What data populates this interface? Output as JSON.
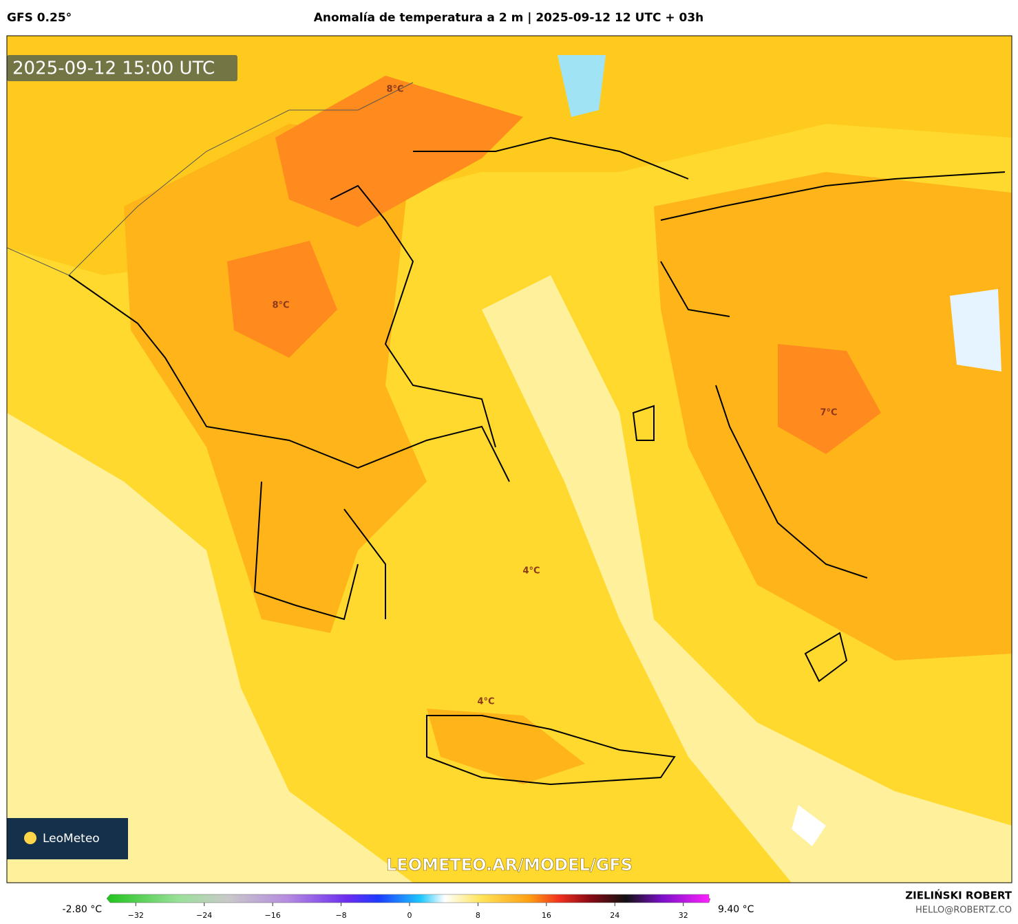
{
  "header": {
    "model": "GFS 0.25°",
    "title": "Anomalía de temperatura a 2 m | 2025-09-12 12 UTC + 03h"
  },
  "map": {
    "valid_time": "2025-09-12 15:00 UTC",
    "labels": [
      "8°C",
      "8°C",
      "7°C",
      "4°C",
      "4°C"
    ],
    "logo": "LeoMeteo",
    "watermark": "LEOMETEO.AR/MODEL/GFS"
  },
  "colorbar": {
    "min_label": "-2.80 °C",
    "max_label": "9.40 °C",
    "range": [
      -35,
      35
    ],
    "ticks": [
      {
        "value": -32,
        "label": "−32"
      },
      {
        "value": -24,
        "label": "−24"
      },
      {
        "value": -16,
        "label": "−16"
      },
      {
        "value": -8,
        "label": "−8"
      },
      0,
      8,
      16,
      24,
      32
    ]
  },
  "credits": {
    "author": "ZIELIŃSKI ROBERT",
    "email": "HELLO@ROBERTZ.CO"
  }
}
